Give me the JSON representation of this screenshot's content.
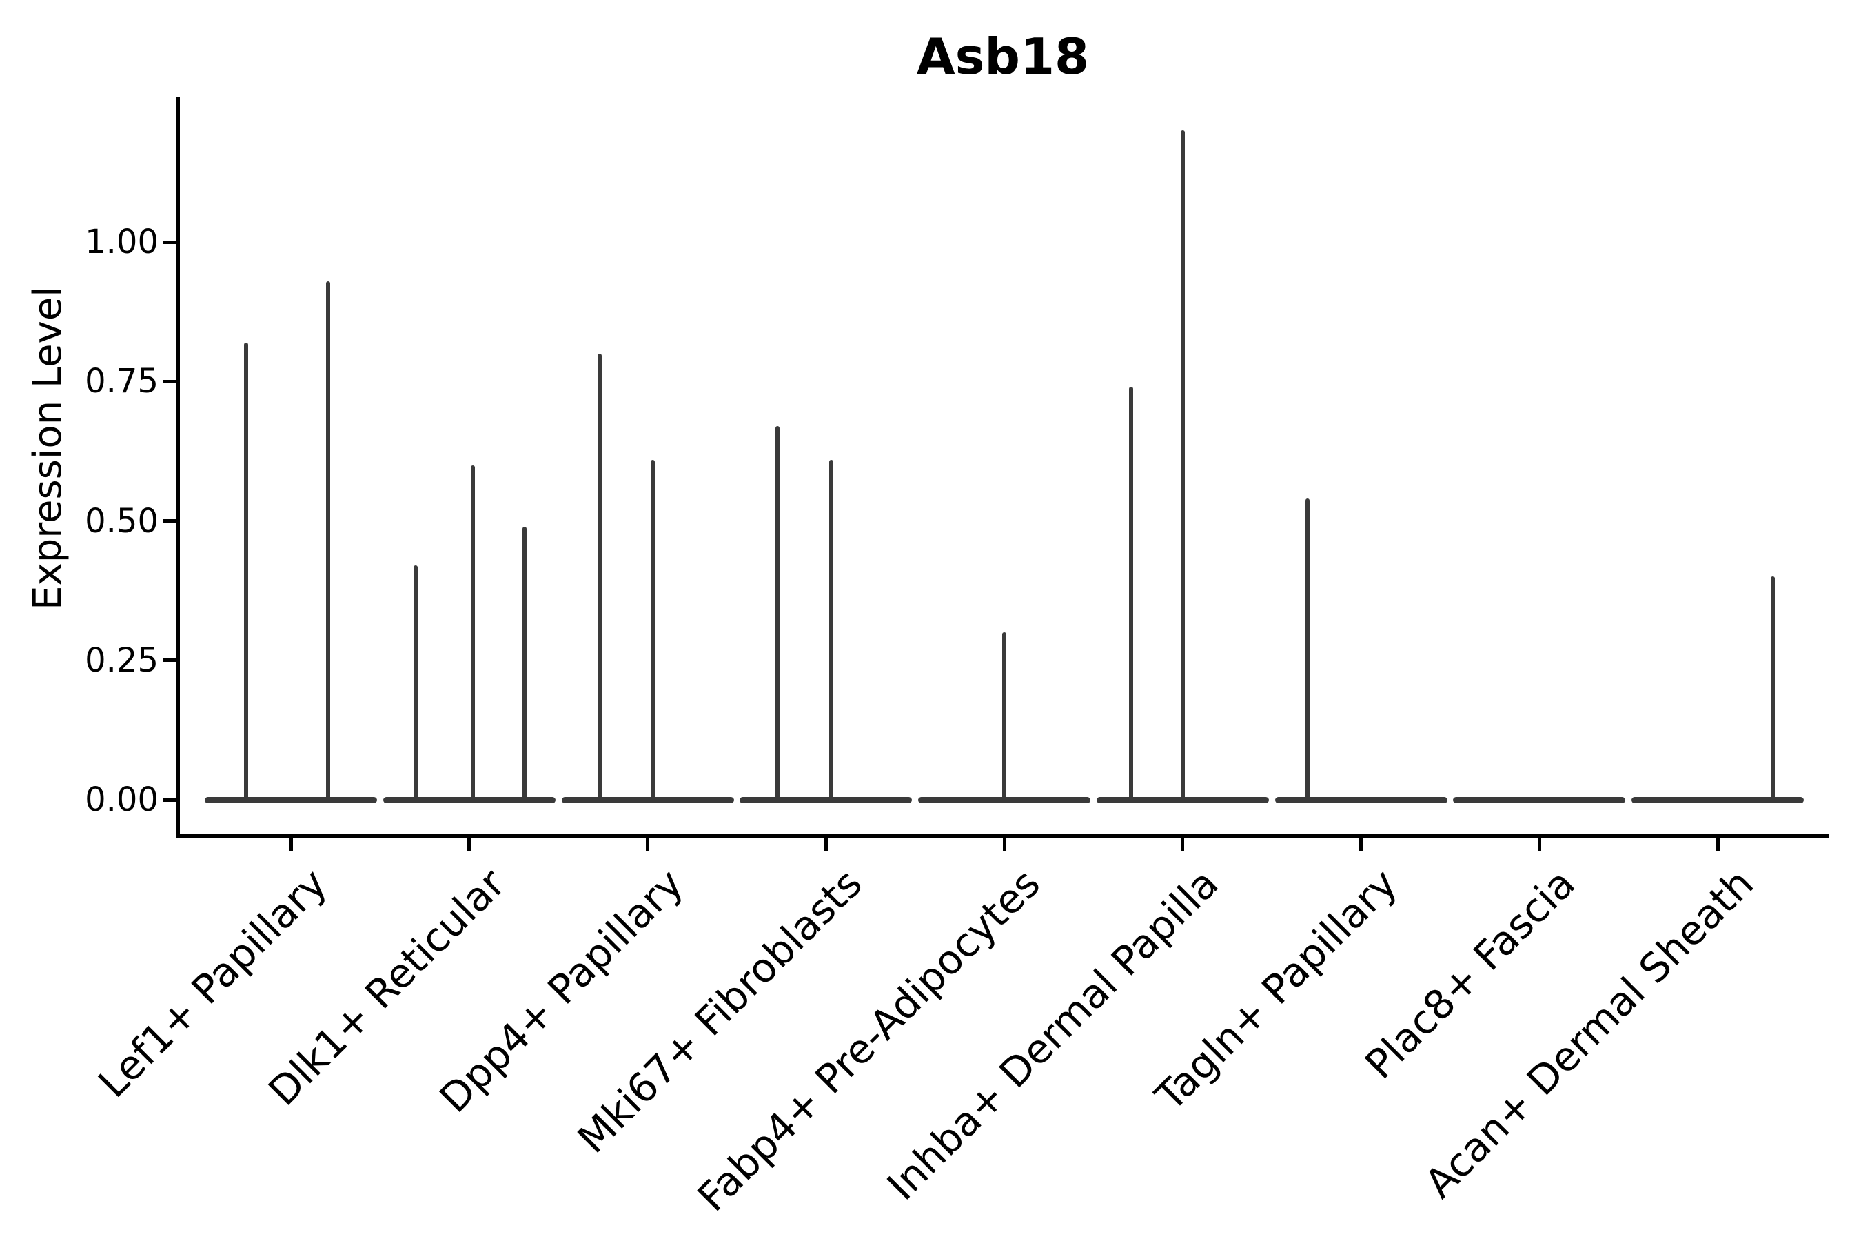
{
  "title": "Asb18",
  "y_axis": {
    "label": "Expression Level",
    "tick_labels": [
      "0.00",
      "0.25",
      "0.50",
      "0.75",
      "1.00"
    ]
  },
  "colors": {
    "violin": "#3a3a3a",
    "axis": "#000000",
    "background": "#ffffff"
  },
  "chart_data": {
    "type": "violin",
    "title": "Asb18",
    "xlabel": "",
    "ylabel": "Expression Level",
    "ylim": [
      0,
      1.26
    ],
    "yticks": [
      0,
      0.25,
      0.5,
      0.75,
      1.0
    ],
    "grid": false,
    "legend": false,
    "description": "Collapsed violins (flat bars at 0) with thin density spikes; spike offset is fraction of category spacing from category center, value is expression level at spike top",
    "categories": [
      "Lef1+ Papillary",
      "Dlk1+ Reticular",
      "Dpp4+ Papillary",
      "Mki67+ Fibroblasts",
      "Fabp4+ Pre-Adipocytes",
      "Inhba+ Dermal Papilla",
      "Tagln+ Papillary",
      "Plac8+ Fascia",
      "Acan+ Dermal Sheath"
    ],
    "series": [
      {
        "category": "Lef1+ Papillary",
        "baseline_value": 0,
        "spikes": [
          {
            "offset": -0.25,
            "value": 0.82
          },
          {
            "offset": 0.21,
            "value": 0.93
          }
        ]
      },
      {
        "category": "Dlk1+ Reticular",
        "baseline_value": 0,
        "spikes": [
          {
            "offset": -0.3,
            "value": 0.42
          },
          {
            "offset": 0.02,
            "value": 0.6
          },
          {
            "offset": 0.31,
            "value": 0.49
          }
        ]
      },
      {
        "category": "Dpp4+ Papillary",
        "baseline_value": 0,
        "spikes": [
          {
            "offset": -0.27,
            "value": 0.8
          },
          {
            "offset": 0.03,
            "value": 0.61
          }
        ]
      },
      {
        "category": "Mki67+ Fibroblasts",
        "baseline_value": 0,
        "spikes": [
          {
            "offset": -0.27,
            "value": 0.67
          },
          {
            "offset": 0.03,
            "value": 0.61
          }
        ]
      },
      {
        "category": "Fabp4+ Pre-Adipocytes",
        "baseline_value": 0,
        "spikes": [
          {
            "offset": 0.0,
            "value": 0.3
          }
        ]
      },
      {
        "category": "Inhba+ Dermal Papilla",
        "baseline_value": 0,
        "spikes": [
          {
            "offset": -0.29,
            "value": 0.74
          },
          {
            "offset": 0.0,
            "value": 1.2
          }
        ]
      },
      {
        "category": "Tagln+ Papillary",
        "baseline_value": 0,
        "spikes": [
          {
            "offset": -0.3,
            "value": 0.54
          }
        ]
      },
      {
        "category": "Plac8+ Fascia",
        "baseline_value": 0,
        "spikes": []
      },
      {
        "category": "Acan+ Dermal Sheath",
        "baseline_value": 0,
        "spikes": [
          {
            "offset": 0.31,
            "value": 0.4
          }
        ]
      }
    ]
  }
}
